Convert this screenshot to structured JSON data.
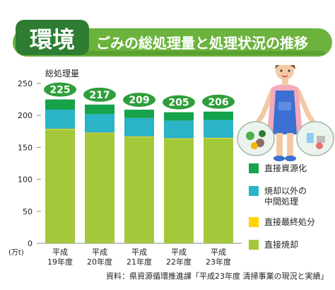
{
  "header": {
    "category": "環境",
    "title": "ごみの総処理量と処理状況の推移"
  },
  "colors": {
    "banner_green": "#6cb33e",
    "banner_dark": "#2e7d32",
    "direct_recycle": "#16a34a",
    "intermediate": "#2bb3c7",
    "landfill": "#ffd400",
    "incineration": "#a3c93a",
    "badge": "#2f9e3b"
  },
  "chart_data": {
    "type": "bar",
    "stacked": true,
    "ylabel": "総処理量",
    "yunit": "(万t)",
    "ylim": [
      0,
      250
    ],
    "yticks": [
      0,
      50,
      100,
      150,
      200,
      250
    ],
    "grid": false,
    "legend_position": "right",
    "categories": [
      [
        "平成",
        "19年度"
      ],
      [
        "平成",
        "20年度"
      ],
      [
        "平成",
        "21年度"
      ],
      [
        "平成",
        "22年度"
      ],
      [
        "平成",
        "23年度"
      ]
    ],
    "totals": [
      225,
      217,
      209,
      205,
      206
    ],
    "series": [
      {
        "name": "直接焼却",
        "color": "#a3c93a",
        "values": [
          178,
          172,
          166,
          163,
          164
        ]
      },
      {
        "name": "直接最終処分",
        "color": "#ffd400",
        "values": [
          1,
          1,
          1,
          1,
          1
        ]
      },
      {
        "name": "焼却以外の中間処理",
        "color": "#2bb3c7",
        "values": [
          30,
          29,
          29,
          28,
          28
        ]
      },
      {
        "name": "直接資源化",
        "color": "#16a34a",
        "values": [
          16,
          15,
          13,
          13,
          13
        ]
      }
    ],
    "legend": [
      {
        "lines": [
          "直接資源化"
        ],
        "series": 3
      },
      {
        "lines": [
          "焼却以外の",
          "中間処理"
        ],
        "series": 2
      },
      {
        "lines": [
          "直接最終処分"
        ],
        "series": 1
      },
      {
        "lines": [
          "直接焼却"
        ],
        "series": 0
      }
    ]
  },
  "source": "資料：県資源循環推進課「平成23年度 清掃事業の現況と実績」"
}
